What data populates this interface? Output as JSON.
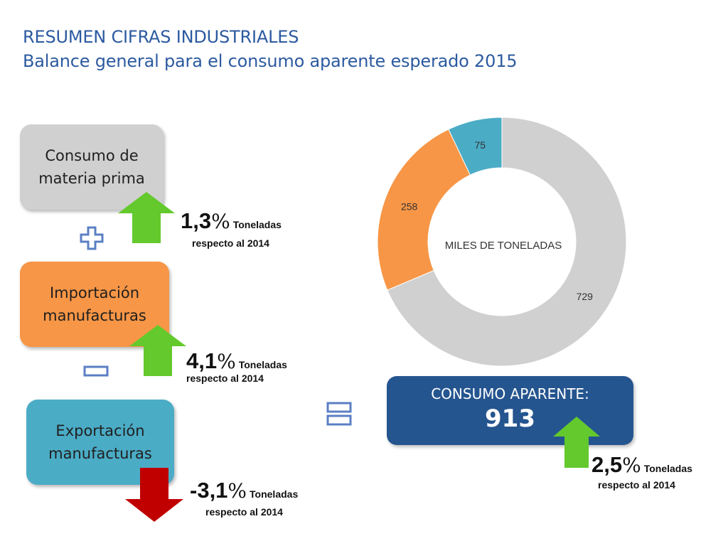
{
  "header": {
    "title": "RESUMEN CIFRAS INDUSTRIALES",
    "subtitle": "Balance general para el consumo aparente esperado 2015"
  },
  "components": [
    {
      "label": "Consumo de\nmateria prima",
      "color": "#d0d0d0",
      "change": {
        "value": "1,3",
        "symbol": "%",
        "unit": "Toneladas",
        "note": "respecto al 2014",
        "direction": "up",
        "arrow_color": "#63c92c"
      }
    },
    {
      "label": "Importación\nmanufacturas",
      "color": "#f79646",
      "change": {
        "value": "4,1",
        "symbol": "%",
        "unit": "Toneladas",
        "note": "respecto al 2014",
        "direction": "up",
        "arrow_color": "#63c92c"
      }
    },
    {
      "label": "Exportación\nmanufacturas",
      "color": "#4bacc6",
      "change": {
        "value": "-3,1",
        "symbol": "%",
        "unit": "Toneladas",
        "note": "respecto al 2014",
        "direction": "down",
        "arrow_color": "#c00000"
      }
    }
  ],
  "operators": [
    "plus-icon",
    "minus-icon",
    "equals-icon"
  ],
  "operator_color": "#5b7fc4",
  "total": {
    "label": "CONSUMO APARENTE:",
    "value": "913",
    "color": "#25558f",
    "change": {
      "value": "2,5",
      "symbol": "%",
      "unit": "Toneladas",
      "note": "respecto al 2014",
      "direction": "up",
      "arrow_color": "#63c92c"
    }
  },
  "chart_data": {
    "type": "pie",
    "style": "donut",
    "center_label": "MILES DE TONELADAS",
    "slices": [
      {
        "value": 729,
        "label": "729",
        "color": "#d0d0d0"
      },
      {
        "value": 258,
        "label": "258",
        "color": "#f79646"
      },
      {
        "value": 75,
        "label": "75",
        "color": "#4bacc6"
      }
    ]
  }
}
